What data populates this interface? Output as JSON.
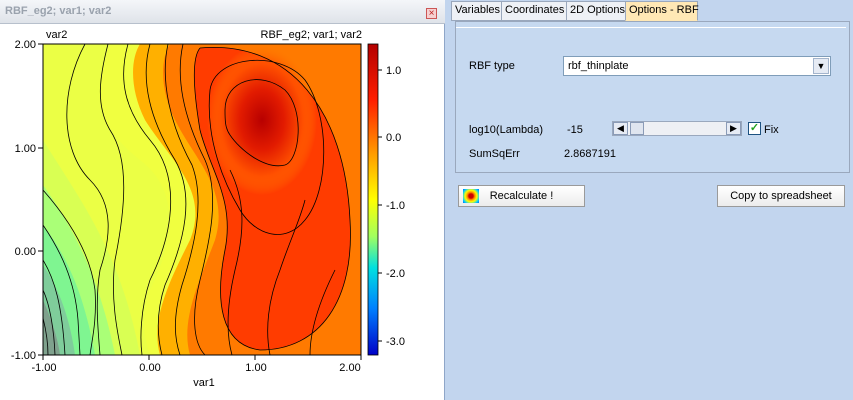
{
  "plot_window": {
    "title": "RBF_eg2; var1; var2",
    "close_glyph": "×",
    "plot_ylabel": "var2",
    "plot_title": "RBF_eg2; var1; var2",
    "x_axis_label": "var1",
    "x_ticks": [
      "-1.00",
      "0.00",
      "1.00",
      "2.00"
    ],
    "y_ticks": [
      "2.00",
      "1.00",
      "0.00",
      "-1.00"
    ],
    "colorbar_ticks": [
      "1.0",
      "0.0",
      "-1.0",
      "-2.0",
      "-3.0"
    ]
  },
  "tabs": [
    {
      "label": "Variables",
      "active": false
    },
    {
      "label": "Coordinates",
      "active": false
    },
    {
      "label": "2D Options",
      "active": false
    },
    {
      "label": "Options - RBF",
      "active": true
    }
  ],
  "options": {
    "rbf_type_label": "RBF type",
    "rbf_type_value": "rbf_thinplate",
    "lambda_label": "log10(Lambda)",
    "lambda_value": "-15",
    "fix_label": "Fix",
    "fix_checked": true,
    "sumsq_label": "SumSqErr",
    "sumsq_value": "2.8687191"
  },
  "buttons": {
    "recalculate": "Recalculate !",
    "copy": "Copy to spreadsheet"
  },
  "icons": {
    "select_arrow": "chevron-down-icon",
    "scroll_left": "chevron-left-icon",
    "scroll_right": "chevron-right-icon",
    "checkmark": "check-icon"
  },
  "colors": {
    "panel_bg": "#c6d9f0",
    "active_tab": "#ffe8b5"
  }
}
